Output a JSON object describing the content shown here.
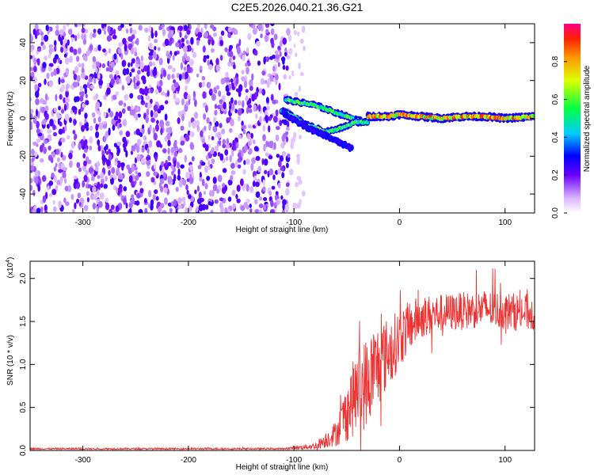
{
  "title": "C2E5.2026.040.21.36.G21",
  "chart_data": [
    {
      "type": "heatmap",
      "name": "spectrogram",
      "xlabel": "Height of straight line (km)",
      "ylabel": "Frequency (Hz)",
      "xlim": [
        -350,
        128
      ],
      "ylim": [
        -50,
        50
      ],
      "xticks": [
        -300,
        -200,
        -100,
        0,
        100
      ],
      "yticks": [
        -40,
        -20,
        0,
        20,
        40
      ],
      "colorbar": {
        "label": "Normalized spectral amplitude",
        "range": [
          0,
          1
        ],
        "ticks": [
          "0.0",
          "0.2",
          "0.4",
          "0.6",
          "0.8"
        ],
        "tick_values": [
          0,
          0.2,
          0.4,
          0.6,
          0.8
        ]
      },
      "noise_region_x": [
        -350,
        -105
      ],
      "signal_tracks": [
        {
          "name": "upper branch",
          "x": [
            -108,
            -100,
            -90,
            -80,
            -70,
            -60,
            -50,
            -40,
            -30
          ],
          "y": [
            10,
            9,
            8,
            7,
            5,
            3,
            1,
            -1,
            -2
          ]
        },
        {
          "name": "lower branch",
          "x": [
            -112,
            -100,
            -90,
            -80,
            -70,
            -60,
            -50,
            -42,
            -30
          ],
          "y": [
            4,
            1,
            -3,
            -5,
            -7,
            -6,
            -4,
            -2,
            -2
          ]
        },
        {
          "name": "faint tail",
          "x": [
            -110,
            -100,
            -90,
            -80,
            -70,
            -60,
            -45
          ],
          "y": [
            3,
            -1,
            -4,
            -7,
            -9,
            -12,
            -16
          ]
        },
        {
          "name": "main line",
          "x": [
            -30,
            -10,
            0,
            20,
            40,
            60,
            80,
            100,
            128
          ],
          "y": [
            1,
            1,
            2,
            1,
            0,
            1,
            1,
            0,
            1
          ]
        }
      ]
    },
    {
      "type": "line",
      "name": "snr",
      "xlabel": "Height of straight line (km)",
      "ylabel": "SNR (10 * v/v)",
      "scale_label": "(x10",
      "scale_exp": "4",
      "scale_close": ")",
      "xlim": [
        -350,
        128
      ],
      "ylim": [
        0,
        2.2
      ],
      "xticks": [
        -300,
        -200,
        -100,
        0,
        100
      ],
      "yticks": [
        "0.0",
        "0.5",
        "1.0",
        "1.5",
        "2.0"
      ],
      "ytick_values": [
        0,
        0.5,
        1.0,
        1.5,
        2.0
      ],
      "color": "#ee3333",
      "series": [
        {
          "name": "SNR envelope",
          "x": [
            -350,
            -110,
            -80,
            -60,
            -50,
            -40,
            -30,
            -20,
            -10,
            0,
            10,
            20,
            40,
            60,
            80,
            100,
            128
          ],
          "y": [
            0.02,
            0.02,
            0.05,
            0.2,
            0.45,
            0.7,
            0.8,
            1.0,
            1.15,
            1.3,
            1.45,
            1.55,
            1.6,
            1.62,
            1.65,
            1.62,
            1.6
          ],
          "noise_amplitude": [
            0.01,
            0.01,
            0.04,
            0.15,
            0.35,
            0.5,
            0.55,
            0.5,
            0.4,
            0.35,
            0.3,
            0.25,
            0.22,
            0.22,
            0.22,
            0.22,
            0.22
          ]
        }
      ]
    }
  ]
}
